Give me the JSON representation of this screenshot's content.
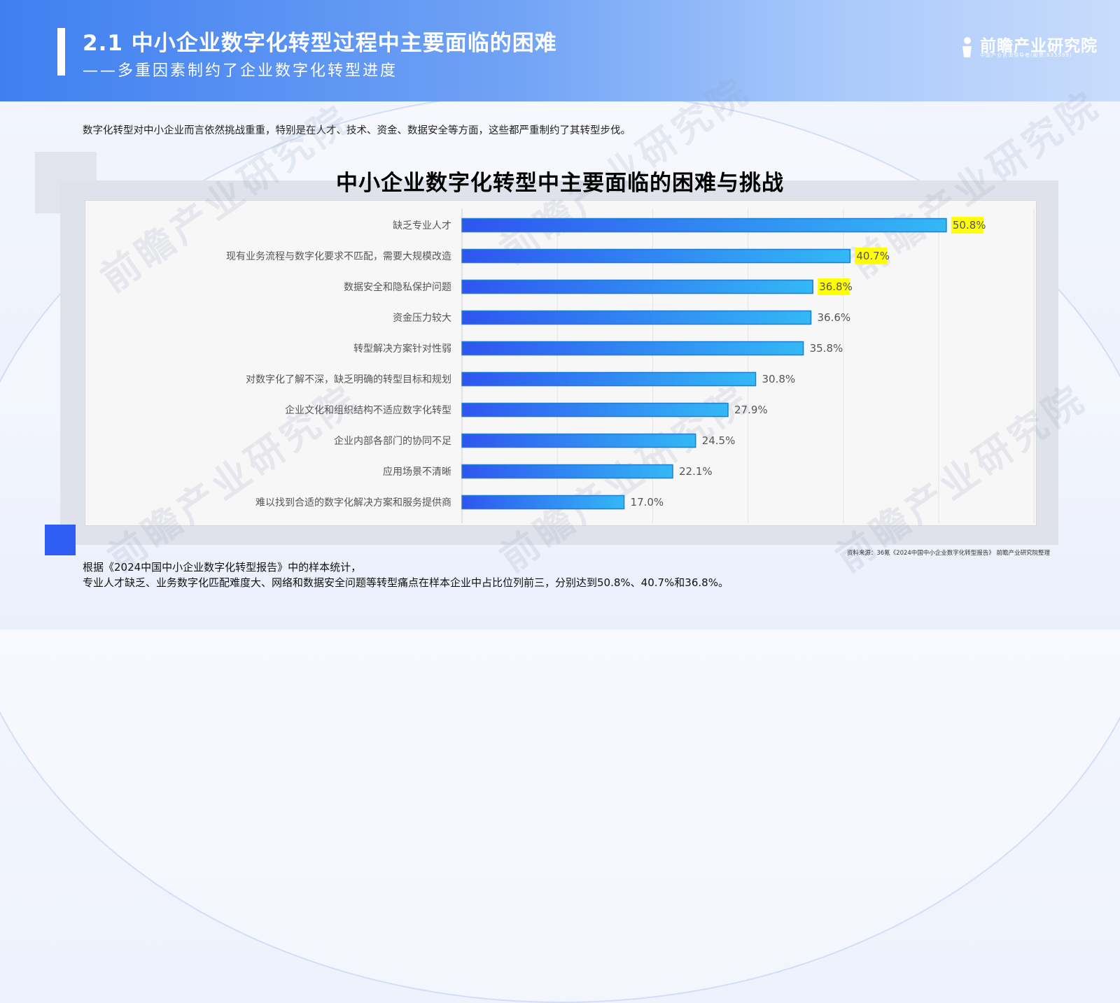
{
  "header": {
    "title": "2.1 中小企业数字化转型过程中主要面临的困难",
    "subtitle": "——多重因素制约了企业数字化转型进度"
  },
  "logo": {
    "name": "前瞻产业研究院",
    "tagline": "中国产业咨询领导者(股票:835599)"
  },
  "intro": "数字化转型对中小企业而言依然挑战重重，特别是在人才、技术、资金、数据安全等方面，这些都严重制约了其转型步伐。",
  "watermark": "前瞻产业研究院",
  "chart_data": {
    "type": "bar",
    "orientation": "horizontal",
    "title": "中小企业数字化转型中主要面临的困难与挑战",
    "categories": [
      "缺乏专业人才",
      "现有业务流程与数字化要求不匹配，需要大规模改造",
      "数据安全和隐私保护问题",
      "资金压力较大",
      "转型解决方案针对性弱",
      "对数字化了解不深，缺乏明确的转型目标和规划",
      "企业文化和组织结构不适应数字化转型",
      "企业内部各部门的协同不足",
      "应用场景不清晰",
      "难以找到合适的数字化解决方案和服务提供商"
    ],
    "values": [
      50.8,
      40.7,
      36.8,
      36.6,
      35.8,
      30.8,
      27.9,
      24.5,
      22.1,
      17.0
    ],
    "value_labels": [
      "50.8%",
      "40.7%",
      "36.8%",
      "36.6%",
      "35.8%",
      "30.8%",
      "27.9%",
      "24.5%",
      "22.1%",
      "17.0%"
    ],
    "highlighted": [
      true,
      true,
      true,
      false,
      false,
      false,
      false,
      false,
      false,
      false
    ],
    "xlim": [
      0,
      60
    ],
    "grid": true,
    "colors": {
      "bar_start": "#2f55f0",
      "bar_end": "#33b8f5",
      "highlight": "#ffff00"
    }
  },
  "source": "资料来源：36氪《2024中国中小企业数字化转型报告》 前瞻产业研究院整理",
  "footnote": {
    "line1": "根据《2024中国中小企业数字化转型报告》中的样本统计，",
    "line2": "专业人才缺乏、业务数字化匹配难度大、网络和数据安全问题等转型痛点在样本企业中占比位列前三，分别达到50.8%、40.7%和36.8%。"
  }
}
